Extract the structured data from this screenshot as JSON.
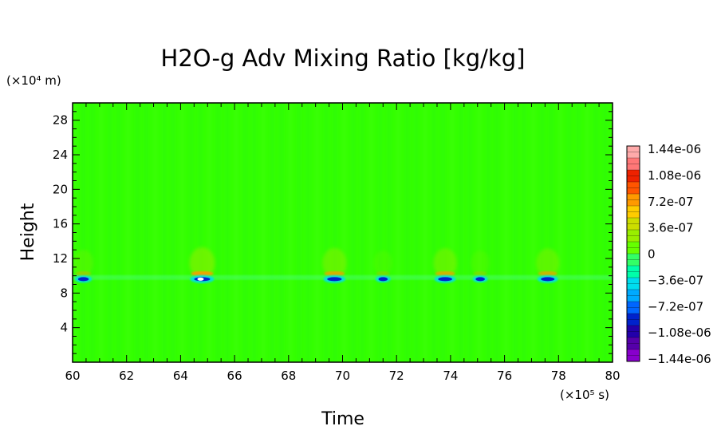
{
  "chart_data": {
    "type": "heatmap",
    "title": "H2O-g Adv Mixing Ratio [kg/kg]",
    "xlabel": "Time",
    "ylabel": "Height",
    "x_unit": "(×10⁵ s)",
    "y_unit": "(×10⁴ m)",
    "xlim": [
      60,
      80
    ],
    "ylim": [
      0,
      30
    ],
    "x_ticks": [
      "60",
      "62",
      "64",
      "66",
      "68",
      "70",
      "72",
      "74",
      "76",
      "78",
      "80"
    ],
    "y_ticks": [
      "4",
      "8",
      "12",
      "16",
      "20",
      "24",
      "28"
    ],
    "background_value": 0,
    "colorbar": {
      "labels": [
        "1.44e-06",
        "1.08e-06",
        "7.2e-07",
        "3.6e-07",
        "0",
        "−3.6e-07",
        "−7.2e-07",
        "−1.08e-06",
        "−1.44e-06"
      ],
      "range": [
        -1.44e-06,
        1.44e-06
      ]
    },
    "band_height": 9.8,
    "features": [
      {
        "time": 60.4,
        "sign": "negative",
        "strength": 0.45
      },
      {
        "time": 64.8,
        "sign": "negative",
        "strength": 1.0
      },
      {
        "time": 69.7,
        "sign": "negative",
        "strength": 0.85
      },
      {
        "time": 71.5,
        "sign": "negative",
        "strength": 0.3
      },
      {
        "time": 73.8,
        "sign": "negative",
        "strength": 0.8
      },
      {
        "time": 75.1,
        "sign": "negative",
        "strength": 0.3
      },
      {
        "time": 77.6,
        "sign": "negative",
        "strength": 0.75
      }
    ]
  },
  "colors": {
    "background": "#33ff00",
    "positive_scale": [
      "#66ff00",
      "#99ee00",
      "#ccdd00",
      "#ffcc00",
      "#ff9900",
      "#ff5500",
      "#ee2200",
      "#ff7777",
      "#ffaaaa"
    ],
    "negative_scale": [
      "#33ff66",
      "#00ffaa",
      "#00ddee",
      "#00aaff",
      "#0066ff",
      "#0022cc",
      "#2200aa",
      "#5500aa",
      "#8800cc"
    ]
  }
}
